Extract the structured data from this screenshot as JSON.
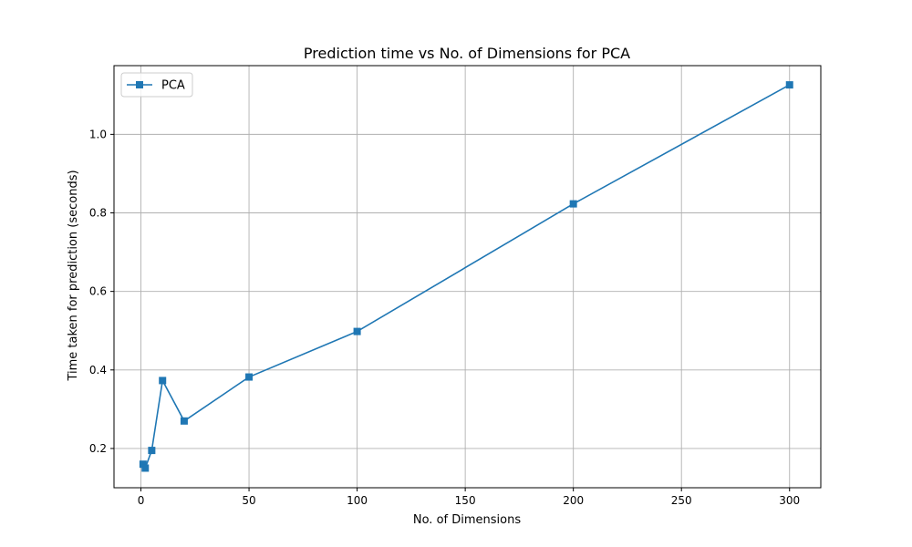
{
  "chart_data": {
    "type": "line",
    "title": "Prediction time vs No. of Dimensions for PCA",
    "xlabel": "No. of Dimensions",
    "ylabel": "Time taken for prediction (seconds)",
    "xlim": [
      -12.45,
      314.45
    ],
    "ylim": [
      0.1,
      1.175
    ],
    "xticks": [
      0,
      50,
      100,
      150,
      200,
      250,
      300
    ],
    "yticks": [
      0.2,
      0.4,
      0.6,
      0.8,
      1.0
    ],
    "xtick_labels": [
      "0",
      "50",
      "100",
      "150",
      "200",
      "250",
      "300"
    ],
    "ytick_labels": [
      "0.2",
      "0.4",
      "0.6",
      "0.8",
      "1.0"
    ],
    "grid": true,
    "legend_position": "top-left",
    "series": [
      {
        "name": "PCA",
        "color": "#1f77b4",
        "marker": "square",
        "x": [
          1,
          2,
          5,
          10,
          20,
          50,
          100,
          200,
          300
        ],
        "y": [
          0.16,
          0.15,
          0.195,
          0.373,
          0.27,
          0.382,
          0.498,
          0.823,
          1.126
        ]
      }
    ]
  }
}
